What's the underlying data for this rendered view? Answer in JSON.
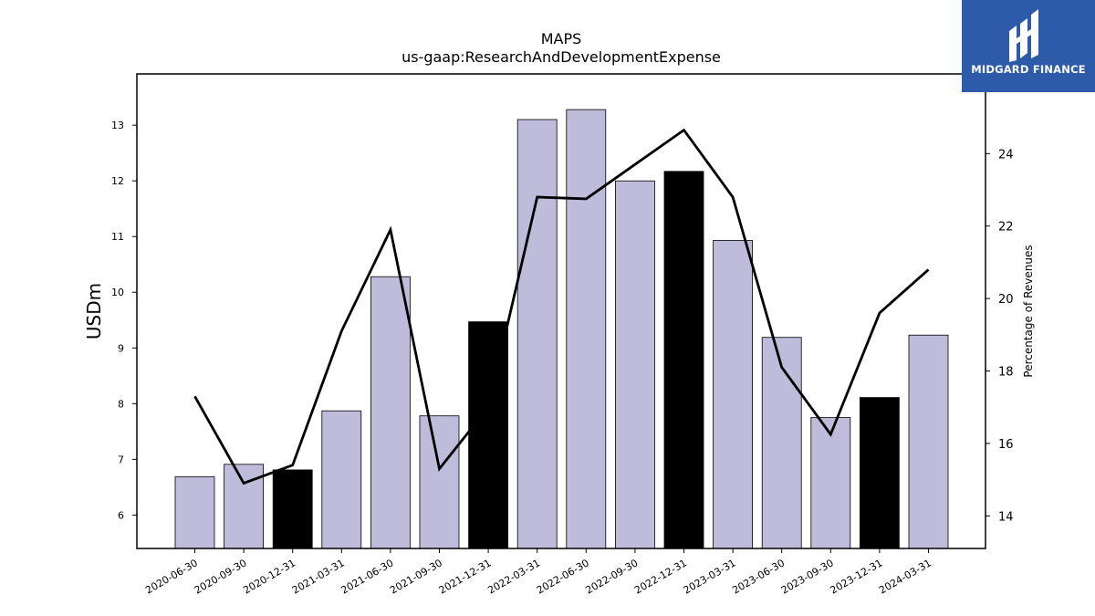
{
  "chart_data": {
    "type": "bar",
    "title": "MAPS",
    "subtitle": "us-gaap:ResearchAndDevelopmentExpense",
    "ylabel": "USDm",
    "y2label": "Percentage of Revenues",
    "categories": [
      "2020-06-30",
      "2020-09-30",
      "2020-12-31",
      "2021-03-31",
      "2021-06-30",
      "2021-09-30",
      "2021-12-31",
      "2022-03-31",
      "2022-06-30",
      "2022-09-30",
      "2022-12-31",
      "2023-03-31",
      "2023-06-30",
      "2023-09-30",
      "2023-12-31",
      "2024-03-31"
    ],
    "series": [
      {
        "type": "bar",
        "axis": "left",
        "values": [
          6.69,
          6.91,
          6.81,
          7.87,
          10.28,
          7.78,
          9.47,
          13.1,
          13.28,
          12.0,
          12.17,
          10.93,
          9.19,
          7.75,
          8.11,
          9.23
        ],
        "colors": [
          "#bebbdb",
          "#bebbdb",
          "#000000",
          "#bebbdb",
          "#bebbdb",
          "#bebbdb",
          "#000000",
          "#bebbdb",
          "#bebbdb",
          "#bebbdb",
          "#000000",
          "#bebbdb",
          "#bebbdb",
          "#bebbdb",
          "#000000",
          "#bebbdb"
        ]
      },
      {
        "type": "line",
        "axis": "right",
        "color": "#000000",
        "values": [
          17.3,
          14.9,
          15.4,
          19.1,
          21.9,
          15.3,
          17.0,
          22.8,
          22.75,
          23.7,
          24.65,
          22.8,
          18.1,
          16.25,
          19.6,
          20.8
        ]
      }
    ],
    "ylim": [
      5.4,
      13.92
    ],
    "y2lim": [
      13.1,
      26.2
    ],
    "yticks": [
      6,
      7,
      8,
      9,
      10,
      11,
      12,
      13
    ],
    "y2ticks": [
      14,
      16,
      18,
      20,
      22,
      24
    ],
    "grid": false,
    "legend": "none"
  },
  "logo": {
    "text": "MIDGARD FINANCE",
    "icon": "midgard-logo-icon",
    "background": "#2d5aa9"
  }
}
